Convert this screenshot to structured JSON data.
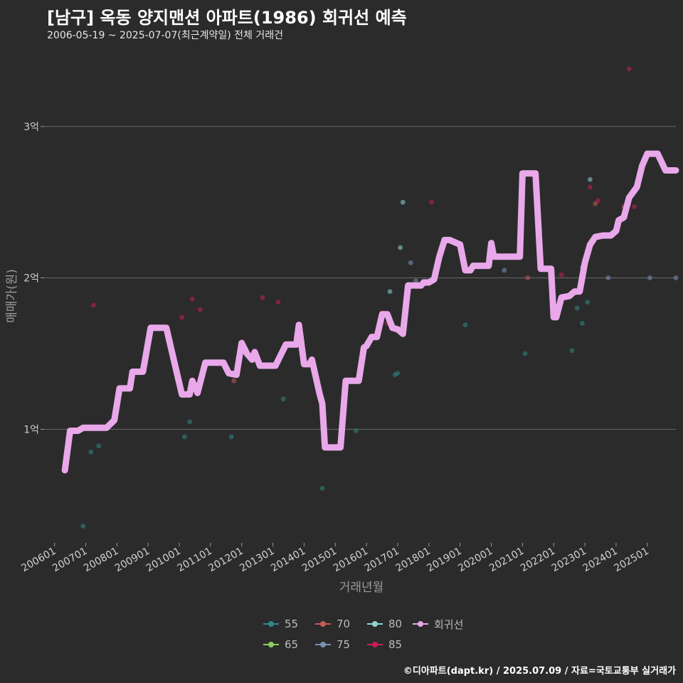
{
  "title": "[남구] 옥동 양지맨션 아파트(1986) 회귀선 예측",
  "subtitle": "2006-05-19 ~ 2025-07-07(최근계약일) 전체 거래건",
  "caption": "©디아파트(dapt.kr) / 2025.07.09 / 자료=국토교통부 실거래가",
  "chart_data": {
    "type": "line",
    "xlabel": "거래년월",
    "ylabel": "매매가(원)",
    "x_ticks": [
      "200601",
      "200701",
      "200801",
      "200901",
      "201001",
      "201101",
      "201201",
      "201301",
      "201401",
      "201501",
      "201601",
      "201701",
      "201801",
      "201901",
      "202001",
      "202101",
      "202201",
      "202301",
      "202401",
      "202501"
    ],
    "y_ticks": [
      {
        "value": 100000000,
        "label": "1억"
      },
      {
        "value": 200000000,
        "label": "2억"
      },
      {
        "value": 300000000,
        "label": "3억"
      }
    ],
    "ylim": [
      25000000,
      345000000
    ],
    "xlim": [
      "2005-09",
      "2025-12"
    ],
    "grid": true,
    "legend_position": "bottom",
    "legend": [
      {
        "label": "55",
        "color": "#2e8b83"
      },
      {
        "label": "65",
        "color": "#8ccd5a"
      },
      {
        "label": "70",
        "color": "#c85a52"
      },
      {
        "label": "75",
        "color": "#7a93b4"
      },
      {
        "label": "80",
        "color": "#8ed6d6"
      },
      {
        "label": "85",
        "color": "#c81e55"
      },
      {
        "label": "회귀선",
        "color": "#e9a8ea"
      }
    ],
    "regression": {
      "name": "회귀선",
      "color": "#e9a8ea",
      "points": [
        [
          "2006-05",
          73000000
        ],
        [
          "2006-07",
          99000000
        ],
        [
          "2006-10",
          99000000
        ],
        [
          "2006-12",
          101000000
        ],
        [
          "2007-09",
          101000000
        ],
        [
          "2007-12",
          106000000
        ],
        [
          "2008-02",
          127000000
        ],
        [
          "2008-06",
          127000000
        ],
        [
          "2008-07",
          138000000
        ],
        [
          "2008-11",
          138000000
        ],
        [
          "2009-02",
          167000000
        ],
        [
          "2009-08",
          167000000
        ],
        [
          "2009-11",
          145000000
        ],
        [
          "2010-02",
          123000000
        ],
        [
          "2010-05",
          123000000
        ],
        [
          "2010-06",
          132000000
        ],
        [
          "2010-08",
          124000000
        ],
        [
          "2010-11",
          144000000
        ],
        [
          "2011-06",
          144000000
        ],
        [
          "2011-08",
          137000000
        ],
        [
          "2011-11",
          136000000
        ],
        [
          "2012-01",
          157000000
        ],
        [
          "2012-03",
          150000000
        ],
        [
          "2012-05",
          146000000
        ],
        [
          "2012-06",
          151000000
        ],
        [
          "2012-08",
          142000000
        ],
        [
          "2013-02",
          142000000
        ],
        [
          "2013-06",
          156000000
        ],
        [
          "2013-10",
          156000000
        ],
        [
          "2013-11",
          169000000
        ],
        [
          "2014-01",
          143000000
        ],
        [
          "2014-03",
          143000000
        ],
        [
          "2014-04",
          146000000
        ],
        [
          "2014-07",
          123000000
        ],
        [
          "2014-08",
          117000000
        ],
        [
          "2014-09",
          88000000
        ],
        [
          "2015-01",
          88000000
        ],
        [
          "2015-03",
          88000000
        ],
        [
          "2015-05",
          132000000
        ],
        [
          "2015-10",
          132000000
        ],
        [
          "2015-12",
          154000000
        ],
        [
          "2016-01",
          155000000
        ],
        [
          "2016-03",
          161000000
        ],
        [
          "2016-05",
          161000000
        ],
        [
          "2016-07",
          176000000
        ],
        [
          "2016-09",
          176000000
        ],
        [
          "2016-11",
          167000000
        ],
        [
          "2017-01",
          166000000
        ],
        [
          "2017-03",
          163000000
        ],
        [
          "2017-05",
          195000000
        ],
        [
          "2017-06",
          195000000
        ],
        [
          "2017-10",
          195000000
        ],
        [
          "2017-11",
          197000000
        ],
        [
          "2018-01",
          197000000
        ],
        [
          "2018-03",
          199000000
        ],
        [
          "2018-05",
          214000000
        ],
        [
          "2018-07",
          225000000
        ],
        [
          "2018-09",
          225000000
        ],
        [
          "2019-01",
          222000000
        ],
        [
          "2019-03",
          205000000
        ],
        [
          "2019-05",
          205000000
        ],
        [
          "2019-06",
          208000000
        ],
        [
          "2019-10",
          208000000
        ],
        [
          "2019-12",
          208000000
        ],
        [
          "2020-01",
          223000000
        ],
        [
          "2020-02",
          214000000
        ],
        [
          "2020-04",
          214000000
        ],
        [
          "2020-05",
          214000000
        ],
        [
          "2020-09",
          214000000
        ],
        [
          "2020-12",
          214000000
        ],
        [
          "2021-01",
          269000000
        ],
        [
          "2021-03",
          269000000
        ],
        [
          "2021-06",
          269000000
        ],
        [
          "2021-08",
          206000000
        ],
        [
          "2021-12",
          206000000
        ],
        [
          "2022-01",
          174000000
        ],
        [
          "2022-02",
          174000000
        ],
        [
          "2022-04",
          187000000
        ],
        [
          "2022-07",
          188000000
        ],
        [
          "2022-09",
          191000000
        ],
        [
          "2022-11",
          191000000
        ],
        [
          "2023-01",
          210000000
        ],
        [
          "2023-03",
          222000000
        ],
        [
          "2023-05",
          227000000
        ],
        [
          "2023-08",
          228000000
        ],
        [
          "2023-11",
          228000000
        ],
        [
          "2024-01",
          231000000
        ],
        [
          "2024-02",
          238000000
        ],
        [
          "2024-04",
          240000000
        ],
        [
          "2024-06",
          253000000
        ],
        [
          "2024-09",
          260000000
        ],
        [
          "2024-11",
          274000000
        ],
        [
          "2025-01",
          282000000
        ],
        [
          "2025-05",
          282000000
        ],
        [
          "2025-08",
          271000000
        ],
        [
          "2025-12",
          271000000
        ]
      ]
    },
    "series": [
      {
        "name": "55",
        "color": "#2e8b83",
        "points": [
          [
            "2006-12",
            36000000
          ],
          [
            "2007-03",
            85000000
          ],
          [
            "2007-06",
            89000000
          ],
          [
            "2010-03",
            95000000
          ],
          [
            "2010-05",
            105000000
          ],
          [
            "2011-09",
            95000000
          ],
          [
            "2013-05",
            120000000
          ],
          [
            "2014-08",
            61000000
          ],
          [
            "2015-09",
            99000000
          ],
          [
            "2016-12",
            136000000
          ],
          [
            "2017-01",
            137000000
          ],
          [
            "2019-03",
            169000000
          ],
          [
            "2021-02",
            150000000
          ],
          [
            "2022-08",
            152000000
          ],
          [
            "2022-10",
            180000000
          ],
          [
            "2022-12",
            170000000
          ],
          [
            "2023-02",
            184000000
          ]
        ]
      },
      {
        "name": "65",
        "color": "#8ccd5a",
        "points": []
      },
      {
        "name": "70",
        "color": "#c85a52",
        "points": [
          [
            "2011-10",
            132000000
          ],
          [
            "2021-03",
            200000000
          ],
          [
            "2023-05",
            249000000
          ],
          [
            "2024-04",
            247000000
          ]
        ]
      },
      {
        "name": "75",
        "color": "#7a93b4",
        "points": [
          [
            "2013-10",
            160000000
          ],
          [
            "2017-06",
            210000000
          ],
          [
            "2017-08",
            198000000
          ],
          [
            "2020-06",
            205000000
          ],
          [
            "2022-12",
            207000000
          ],
          [
            "2023-10",
            200000000
          ],
          [
            "2025-02",
            200000000
          ],
          [
            "2025-12",
            200000000
          ]
        ]
      },
      {
        "name": "80",
        "color": "#8ed6d6",
        "points": [
          [
            "2016-10",
            191000000
          ],
          [
            "2017-02",
            220000000
          ],
          [
            "2017-03",
            250000000
          ],
          [
            "2023-03",
            265000000
          ]
        ]
      },
      {
        "name": "85",
        "color": "#c81e55",
        "points": [
          [
            "2007-04",
            182000000
          ],
          [
            "2010-02",
            174000000
          ],
          [
            "2010-06",
            186000000
          ],
          [
            "2010-09",
            179000000
          ],
          [
            "2012-09",
            187000000
          ],
          [
            "2013-03",
            184000000
          ],
          [
            "2016-07",
            177000000
          ],
          [
            "2016-09",
            170000000
          ],
          [
            "2018-02",
            250000000
          ],
          [
            "2022-04",
            202000000
          ],
          [
            "2023-03",
            260000000
          ],
          [
            "2023-06",
            251000000
          ],
          [
            "2024-06",
            338000000
          ],
          [
            "2024-08",
            247000000
          ]
        ]
      }
    ]
  }
}
